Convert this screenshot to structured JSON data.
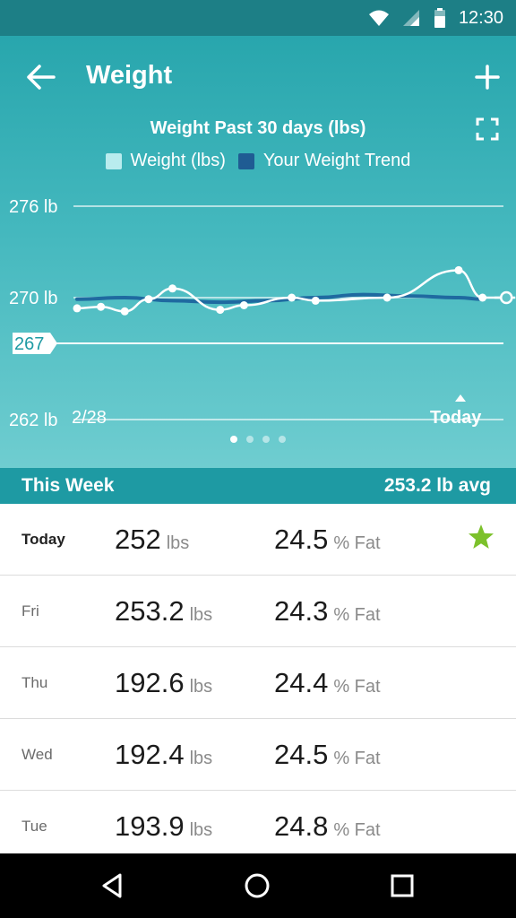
{
  "status_bar": {
    "time": "12:30"
  },
  "header": {
    "title": "Weight"
  },
  "chart_data": {
    "type": "line",
    "title": "Weight Past 30 days (lbs)",
    "legend": [
      {
        "label": "Weight (lbs)",
        "color": "#b9ecee"
      },
      {
        "label": "Your Weight Trend",
        "color": "#1f5c93"
      }
    ],
    "y_ticks": [
      "276 lb",
      "270 lb",
      "262 lb"
    ],
    "y_tick_values": [
      276,
      270,
      262
    ],
    "goal_label": "267",
    "goal_value": 267,
    "ylim": [
      262,
      276
    ],
    "x_start_label": "2/28",
    "x_end_label": "Today",
    "series": [
      {
        "name": "Weight (lbs)",
        "x": [
          0,
          1,
          2,
          3,
          4,
          6,
          7,
          9,
          10,
          13,
          16,
          17,
          18
        ],
        "values": [
          269.3,
          269.4,
          269.1,
          269.9,
          270.6,
          269.2,
          269.5,
          270.0,
          269.8,
          270.0,
          271.8,
          270.0,
          270.0
        ]
      },
      {
        "name": "Your Weight Trend",
        "x": [
          0,
          2,
          4,
          6,
          8,
          10,
          12,
          14,
          16,
          17
        ],
        "values": [
          269.9,
          270.0,
          269.8,
          269.7,
          269.8,
          270.0,
          270.2,
          270.1,
          270.0,
          269.9
        ]
      }
    ]
  },
  "pager": {
    "count": 4,
    "active": 0
  },
  "week": {
    "title": "This Week",
    "avg": "253.2 lb avg"
  },
  "rows": [
    {
      "day": "Today",
      "weight": "252",
      "weight_unit": "lbs",
      "fat": "24.5",
      "fat_unit": "% Fat",
      "starred": true
    },
    {
      "day": "Fri",
      "weight": "253.2",
      "weight_unit": "lbs",
      "fat": "24.3",
      "fat_unit": "% Fat",
      "starred": false
    },
    {
      "day": "Thu",
      "weight": "192.6",
      "weight_unit": "lbs",
      "fat": "24.4",
      "fat_unit": "% Fat",
      "starred": false
    },
    {
      "day": "Wed",
      "weight": "192.4",
      "weight_unit": "lbs",
      "fat": "24.5",
      "fat_unit": "% Fat",
      "starred": false
    },
    {
      "day": "Tue",
      "weight": "193.9",
      "weight_unit": "lbs",
      "fat": "24.8",
      "fat_unit": "% Fat",
      "starred": false
    }
  ],
  "colors": {
    "accent": "#1e9aa3",
    "star": "#7cc12b",
    "trend": "#1f5c93"
  }
}
